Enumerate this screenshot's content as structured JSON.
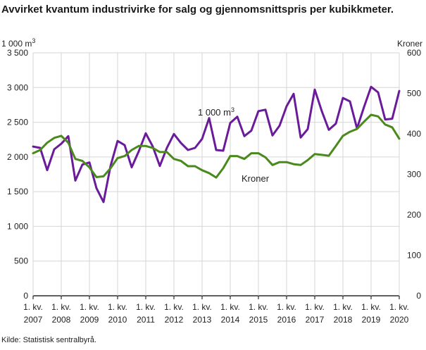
{
  "chart_data": {
    "type": "line",
    "title": "Avvirket kvantum industrivirke for salg og gjennomsnittspris per kubikkmeter.",
    "source": "Kilde: Statistisk sentralbyrå.",
    "left_axis": {
      "unit_label": "1 000 m",
      "unit_superscript": "3",
      "ylim": [
        0,
        3500
      ],
      "ticks": [
        0,
        500,
        1000,
        1500,
        2000,
        2500,
        3000,
        3500
      ],
      "tick_labels": [
        "0",
        "500",
        "1 000",
        "1 500",
        "2 000",
        "2 500",
        "3 000",
        "3 500"
      ]
    },
    "right_axis": {
      "unit_label": "Kroner",
      "ylim": [
        0,
        600
      ],
      "ticks": [
        0,
        100,
        200,
        300,
        400,
        500,
        600
      ],
      "tick_labels": [
        "0",
        "100",
        "200",
        "300",
        "400",
        "500",
        "600"
      ]
    },
    "x_axis": {
      "range": [
        0,
        52
      ],
      "tick_positions": [
        0,
        4,
        8,
        12,
        16,
        20,
        24,
        28,
        32,
        36,
        40,
        44,
        48,
        52
      ],
      "tick_labels": [
        {
          "line1": "1. kv.",
          "line2": "2007"
        },
        {
          "line1": "1. kv.",
          "line2": "2008"
        },
        {
          "line1": "1. kv.",
          "line2": "2009"
        },
        {
          "line1": "1. kv.",
          "line2": "2010"
        },
        {
          "line1": "1. kv.",
          "line2": "2011"
        },
        {
          "line1": "1. kv.",
          "line2": "2012"
        },
        {
          "line1": "1. kv.",
          "line2": "2013"
        },
        {
          "line1": "1. kv.",
          "line2": "2014"
        },
        {
          "line1": "1. kv.",
          "line2": "2015"
        },
        {
          "line1": "1. kv.",
          "line2": "2016"
        },
        {
          "line1": "1. kv.",
          "line2": "2017"
        },
        {
          "line1": "1. kv.",
          "line2": "2018"
        },
        {
          "line1": "1. kv.",
          "line2": "2019"
        },
        {
          "line1": "1. kv.",
          "line2": "2020"
        }
      ]
    },
    "grid": true,
    "series": [
      {
        "name": "1 000 m3",
        "label_text": "1 000 m",
        "label_superscript": "3",
        "axis": "left",
        "color": "#6a1b9a",
        "values": [
          2150,
          2130,
          1810,
          2110,
          2190,
          2300,
          1660,
          1890,
          1920,
          1550,
          1350,
          1870,
          2230,
          2170,
          1850,
          2080,
          2340,
          2150,
          1870,
          2130,
          2330,
          2200,
          2100,
          2130,
          2260,
          2560,
          2100,
          2090,
          2490,
          2580,
          2300,
          2380,
          2660,
          2680,
          2310,
          2450,
          2730,
          2910,
          2280,
          2400,
          2970,
          2660,
          2390,
          2480,
          2850,
          2800,
          2410,
          2720,
          3010,
          2930,
          2540,
          2550,
          2950
        ]
      },
      {
        "name": "Kroner",
        "label_text": "Kroner",
        "axis": "right",
        "color": "#4a8a1c",
        "values": [
          352,
          360,
          378,
          390,
          395,
          378,
          338,
          333,
          317,
          293,
          295,
          315,
          340,
          345,
          360,
          370,
          370,
          365,
          355,
          355,
          338,
          333,
          320,
          320,
          310,
          303,
          292,
          315,
          345,
          345,
          338,
          352,
          352,
          342,
          323,
          330,
          330,
          325,
          323,
          335,
          350,
          348,
          346,
          370,
          395,
          405,
          412,
          430,
          447,
          443,
          423,
          416,
          388
        ]
      }
    ]
  }
}
